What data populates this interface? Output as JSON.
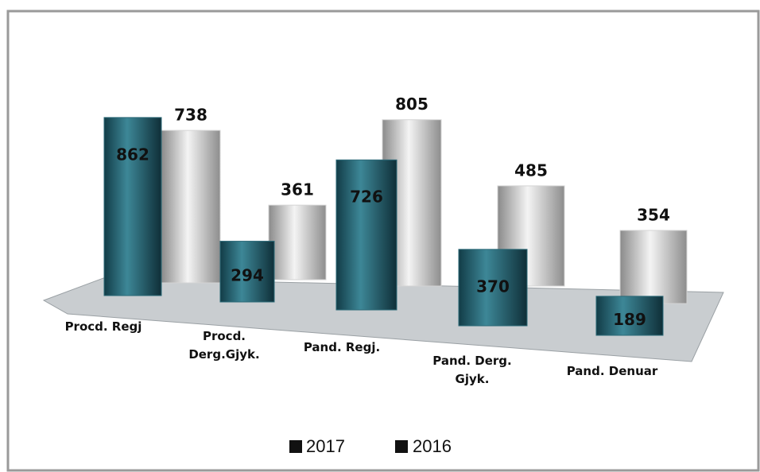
{
  "chart_data": {
    "type": "cylinder3d",
    "categories": [
      "Procd. Regj",
      "Procd. Derg.Gjyk.",
      "Pand. Regj.",
      "Pand. Derg. Gjyk.",
      "Pand. Denuar"
    ],
    "series": [
      {
        "name": "2017",
        "color": "#2c6a78",
        "values": [
          862,
          294,
          726,
          370,
          189
        ]
      },
      {
        "name": "2016",
        "color": "#d4d4d4",
        "values": [
          738,
          361,
          805,
          485,
          354
        ]
      }
    ]
  }
}
